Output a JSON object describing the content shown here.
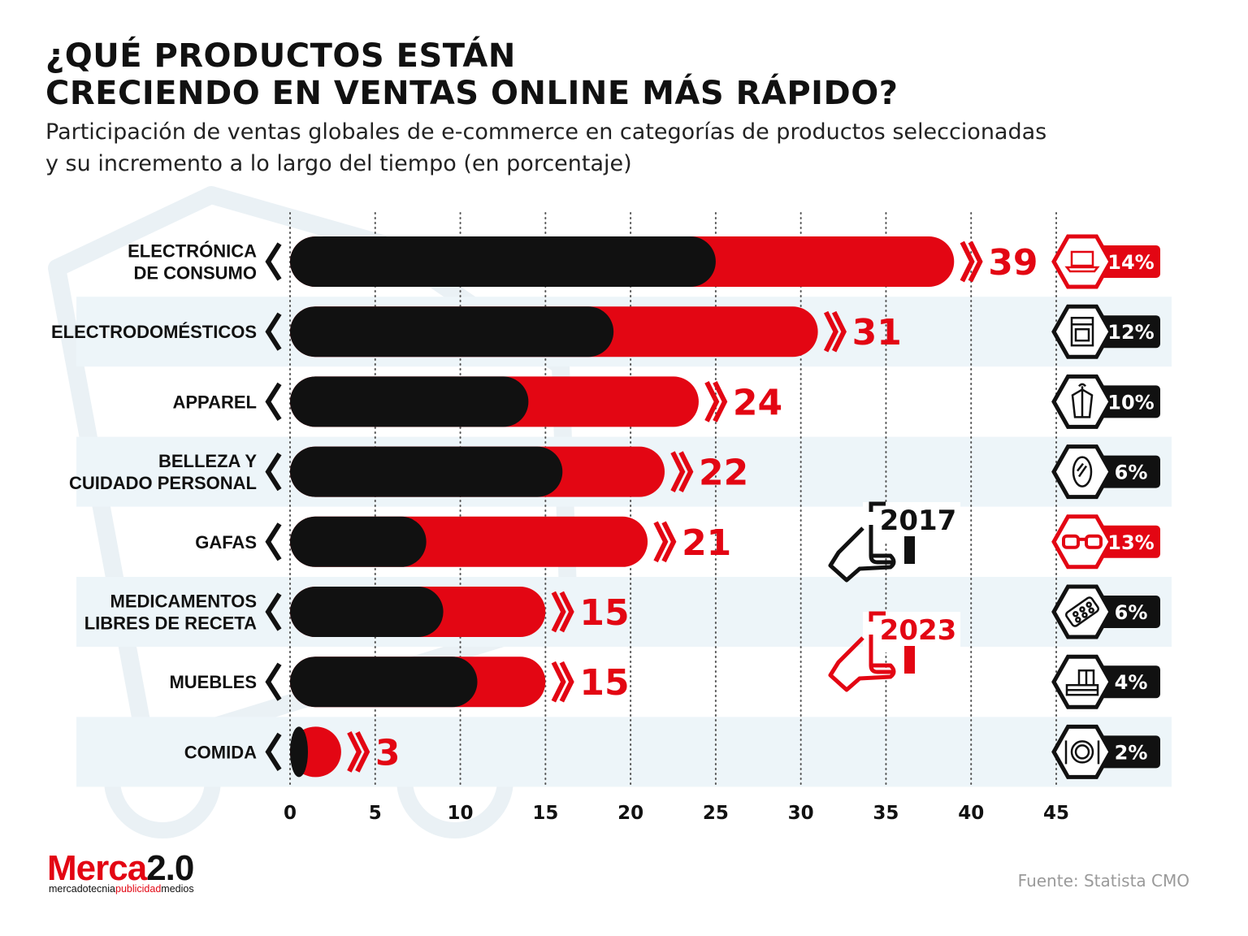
{
  "chart_data": {
    "type": "bar",
    "title": "¿QUÉ PRODUCTOS ESTÁN CRECIENDO EN VENTAS ONLINE MÁS RÁPIDO?",
    "title_lines": [
      "¿QUÉ PRODUCTOS ESTÁN",
      "CRECIENDO EN VENTAS ONLINE MÁS RÁPIDO?"
    ],
    "subtitle_lines": [
      "Participación de ventas globales de e-commerce en categorías de productos seleccionadas",
      "y su incremento a lo largo del tiempo (en porcentaje)"
    ],
    "orientation": "horizontal",
    "xlim": [
      0,
      45
    ],
    "xticks": [
      0,
      5,
      10,
      15,
      20,
      25,
      30,
      35,
      40,
      45
    ],
    "grid": "vertical dotted",
    "categories": [
      [
        "ELECTRÓNICA",
        "DE CONSUMO"
      ],
      [
        "ELECTRODOMÉSTICOS"
      ],
      [
        "APPAREL"
      ],
      [
        "BELLEZA Y",
        "CUIDADO PERSONAL"
      ],
      [
        "GAFAS"
      ],
      [
        "MEDICAMENTOS",
        "LIBRES DE RECETA"
      ],
      [
        "MUEBLES"
      ],
      [
        "COMIDA"
      ]
    ],
    "series": [
      {
        "name": "2017",
        "color": "#111111",
        "values": [
          25,
          19,
          14,
          16,
          8,
          9,
          11,
          1
        ]
      },
      {
        "name": "2023",
        "color": "#e30613",
        "values": [
          39,
          31,
          24,
          22,
          21,
          15,
          15,
          3
        ]
      }
    ],
    "value_labels": [
      "39",
      "31",
      "24",
      "22",
      "21",
      "15",
      "15",
      "3"
    ],
    "increase_labels": [
      "14%",
      "12%",
      "10%",
      "6%",
      "13%",
      "6%",
      "4%",
      "2%"
    ],
    "highlighted_increases": [
      0,
      4
    ],
    "icons": [
      "laptop-icon",
      "stove-icon",
      "robe-icon",
      "mirror-icon",
      "glasses-icon",
      "pill-pack-icon",
      "furniture-icon",
      "plate-icon"
    ],
    "legend": [
      {
        "label": "2017",
        "color": "#111111"
      },
      {
        "label": "2023",
        "color": "#e30613"
      }
    ],
    "legend_position": "right-middle",
    "colors": {
      "bar_2017": "#111111",
      "bar_2023": "#e30613",
      "row_band": "#edf5f9",
      "grid": "#555555"
    }
  },
  "footer": {
    "logo": {
      "merca": "Merca",
      "num": "2.0",
      "sub_1": "mercadotecnia",
      "sub_2": "publicidad",
      "sub_3": "medios"
    },
    "source": "Fuente: Statista CMO"
  }
}
